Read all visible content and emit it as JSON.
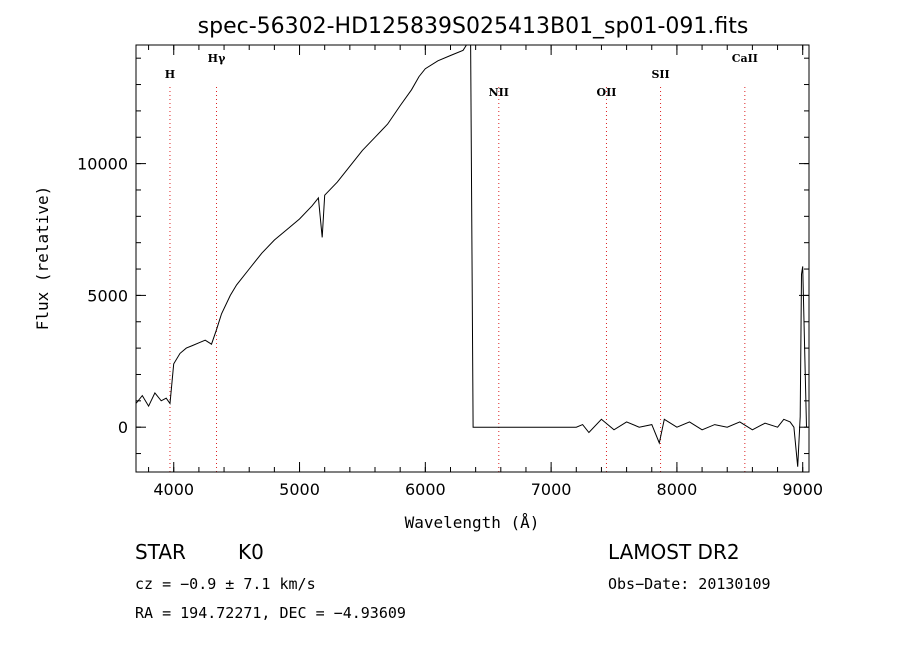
{
  "chart_data": {
    "type": "line",
    "title": "spec-56302-HD125839S025413B01_sp01-091.fits",
    "xlabel": "Wavelength (Å)",
    "ylabel": "Flux (relative)",
    "xlim": [
      3700,
      9050
    ],
    "ylim": [
      -1700,
      14500
    ],
    "x_ticks": [
      4000,
      5000,
      6000,
      7000,
      8000,
      9000
    ],
    "y_ticks": [
      0,
      5000,
      10000
    ],
    "grid": false,
    "series": [
      {
        "x": [
          3700,
          3750,
          3800,
          3850,
          3900,
          3940,
          3970,
          4000,
          4050,
          4100,
          4150,
          4200,
          4250,
          4300,
          4340,
          4380,
          4450,
          4500,
          4600,
          4700,
          4800,
          4900,
          5000,
          5100,
          5150,
          5180,
          5200,
          5300,
          5400,
          5500,
          5600,
          5700,
          5800,
          5890,
          5950,
          6000,
          6100,
          6200,
          6300,
          6340,
          6360,
          6380,
          6400,
          6500,
          6600,
          6800,
          7000,
          7200,
          7250,
          7300,
          7400,
          7500,
          7600,
          7700,
          7800,
          7860,
          7900,
          8000,
          8100,
          8200,
          8300,
          8400,
          8500,
          8600,
          8700,
          8800,
          8850,
          8900,
          8930,
          8960,
          8980,
          8990,
          9000,
          9030
        ],
        "y": [
          900,
          1200,
          800,
          1300,
          1000,
          1100,
          900,
          2400,
          2800,
          3000,
          3100,
          3200,
          3300,
          3150,
          3700,
          4300,
          5000,
          5400,
          6000,
          6600,
          7100,
          7500,
          7900,
          8400,
          8700,
          7200,
          8800,
          9300,
          9900,
          10500,
          11000,
          11500,
          12200,
          12800,
          13300,
          13600,
          13900,
          14100,
          14300,
          14600,
          14700,
          0,
          0,
          0,
          0,
          0,
          0,
          0,
          100,
          -200,
          300,
          -100,
          200,
          0,
          100,
          -600,
          300,
          0,
          200,
          -100,
          100,
          0,
          200,
          -100,
          150,
          0,
          300,
          200,
          0,
          -1500,
          400,
          5800,
          6100,
          0
        ]
      }
    ],
    "annotations": [
      {
        "label": "H",
        "x": 3970
      },
      {
        "label": "Hγ",
        "x": 4340
      },
      {
        "label": "NII",
        "x": 6584
      },
      {
        "label": "OII",
        "x": 7440
      },
      {
        "label": "SII",
        "x": 7870
      },
      {
        "label": "CaII",
        "x": 8540
      }
    ]
  },
  "info": {
    "class_label": "STAR",
    "subclass": "K0",
    "cz": "cz = −0.9 ± 7.1 km/s",
    "radec": "RA = 194.72271, DEC =  −4.93609",
    "survey": "LAMOST DR2",
    "obs_date": "Obs−Date: 20130109"
  }
}
